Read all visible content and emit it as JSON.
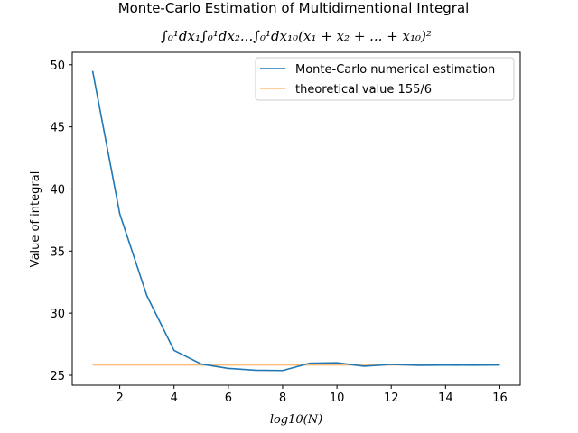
{
  "chart_data": {
    "type": "line",
    "title": "Monte-Carlo Estimation of Multidimentional Integral",
    "subtitle": "∫₀¹dx₁∫₀¹dx₂...∫₀¹dx₁₀(x₁ + x₂ + ... + x₁₀)²",
    "xlabel": "log10(N)",
    "ylabel": "Value of integral",
    "xlim": [
      0.25,
      16.75
    ],
    "ylim": [
      24.2,
      51.0
    ],
    "xticks": [
      2,
      4,
      6,
      8,
      10,
      12,
      14,
      16
    ],
    "yticks": [
      25,
      30,
      35,
      40,
      45,
      50
    ],
    "grid": false,
    "legend_position": "top-right",
    "series": [
      {
        "name": "Monte-Carlo numerical estimation",
        "color": "#1f77b4",
        "x": [
          1,
          2,
          3,
          4,
          5,
          6,
          7,
          8,
          9,
          10,
          11,
          12,
          13,
          14,
          15,
          16
        ],
        "y": [
          49.5,
          38.0,
          31.4,
          27.0,
          25.9,
          25.55,
          25.4,
          25.38,
          25.97,
          26.0,
          25.73,
          25.87,
          25.8,
          25.82,
          25.81,
          25.83
        ]
      },
      {
        "name": "theoretical value 155/6",
        "color": "#ffbb78",
        "x": [
          1,
          16
        ],
        "y": [
          25.833,
          25.833
        ]
      }
    ]
  }
}
